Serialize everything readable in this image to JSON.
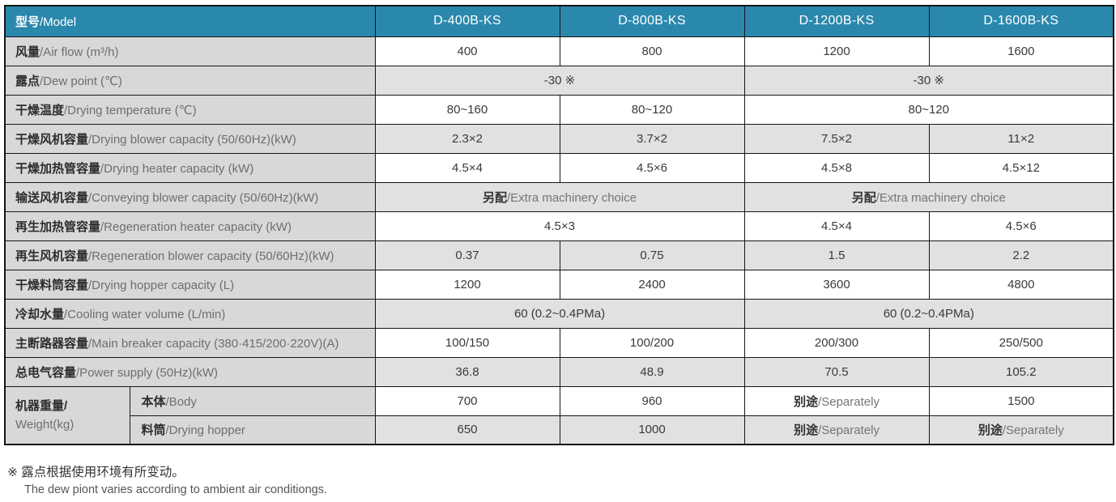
{
  "accent_color": "#2b88ad",
  "table": {
    "header": {
      "label_zh": "型号",
      "label_en": "/Model",
      "models": [
        "D-400B-KS",
        "D-800B-KS",
        "D-1200B-KS",
        "D-1600B-KS"
      ]
    },
    "rows": [
      {
        "label_zh": "风量",
        "label_en": "/Air flow (m³/h)",
        "shaded": false,
        "cells": [
          {
            "text": "400"
          },
          {
            "text": "800"
          },
          {
            "text": "1200"
          },
          {
            "text": "1600"
          }
        ]
      },
      {
        "label_zh": "露点",
        "label_en": "/Dew point (℃)",
        "shaded": true,
        "cells": [
          {
            "text": "-30 ※",
            "span": 2
          },
          {
            "text": "-30 ※",
            "span": 2
          }
        ]
      },
      {
        "label_zh": "干燥温度",
        "label_en": "/Drying temperature (℃)",
        "shaded": false,
        "cells": [
          {
            "text": "80~160"
          },
          {
            "text": "80~120"
          },
          {
            "text": "80~120",
            "span": 2
          }
        ]
      },
      {
        "label_zh": "干燥风机容量",
        "label_en": "/Drying blower capacity (50/60Hz)(kW)",
        "shaded": true,
        "cells": [
          {
            "text": "2.3×2"
          },
          {
            "text": "3.7×2"
          },
          {
            "text": "7.5×2"
          },
          {
            "text": "11×2"
          }
        ]
      },
      {
        "label_zh": "干燥加热管容量",
        "label_en": "/Drying heater capacity (kW)",
        "shaded": false,
        "cells": [
          {
            "text": "4.5×4"
          },
          {
            "text": "4.5×6"
          },
          {
            "text": "4.5×8"
          },
          {
            "text": "4.5×12"
          }
        ]
      },
      {
        "label_zh": "输送风机容量",
        "label_en": "/Conveying blower capacity (50/60Hz)(kW)",
        "shaded": true,
        "cells": [
          {
            "zh": "另配",
            "en": "/Extra machinery choice",
            "span": 2
          },
          {
            "zh": "另配",
            "en": "/Extra machinery choice",
            "span": 2
          }
        ]
      },
      {
        "label_zh": "再生加热管容量",
        "label_en": "/Regeneration heater capacity (kW)",
        "shaded": false,
        "cells": [
          {
            "text": "4.5×3",
            "span": 2
          },
          {
            "text": "4.5×4"
          },
          {
            "text": "4.5×6"
          }
        ]
      },
      {
        "label_zh": "再生风机容量",
        "label_en": "/Regeneration blower capacity (50/60Hz)(kW)",
        "shaded": true,
        "cells": [
          {
            "text": "0.37"
          },
          {
            "text": "0.75"
          },
          {
            "text": "1.5"
          },
          {
            "text": "2.2"
          }
        ]
      },
      {
        "label_zh": "干燥料筒容量",
        "label_en": "/Drying hopper capacity (L)",
        "shaded": false,
        "cells": [
          {
            "text": "1200"
          },
          {
            "text": "2400"
          },
          {
            "text": "3600"
          },
          {
            "text": "4800"
          }
        ]
      },
      {
        "label_zh": "冷却水量",
        "label_en": "/Cooling water volume (L/min)",
        "shaded": true,
        "cells": [
          {
            "text": "60 (0.2~0.4PMa)",
            "span": 2
          },
          {
            "text": "60 (0.2~0.4PMa)",
            "span": 2
          }
        ]
      },
      {
        "label_zh": "主断路器容量",
        "label_en": "/Main breaker capacity (380·415/200·220V)(A)",
        "shaded": false,
        "cells": [
          {
            "text": "100/150"
          },
          {
            "text": "100/200"
          },
          {
            "text": "200/300"
          },
          {
            "text": "250/500"
          }
        ]
      },
      {
        "label_zh": "总电气容量",
        "label_en": "/Power supply (50Hz)(kW)",
        "shaded": true,
        "cells": [
          {
            "text": "36.8"
          },
          {
            "text": "48.9"
          },
          {
            "text": "70.5"
          },
          {
            "text": "105.2"
          }
        ]
      }
    ],
    "weight_group": {
      "label_zh": "机器重量/",
      "label_en": "Weight(kg)",
      "rows": [
        {
          "sub_zh": "本体",
          "sub_en": "/Body",
          "shaded": false,
          "cells": [
            {
              "text": "700"
            },
            {
              "text": "960"
            },
            {
              "zh": "别途",
              "en": "/Separately"
            },
            {
              "text": "1500"
            }
          ]
        },
        {
          "sub_zh": "料筒",
          "sub_en": "/Drying hopper",
          "shaded": true,
          "cells": [
            {
              "text": "650"
            },
            {
              "text": "1000"
            },
            {
              "zh": "别途",
              "en": "/Separately"
            },
            {
              "zh": "别途",
              "en": "/Separately"
            }
          ]
        }
      ]
    }
  },
  "footnote": {
    "zh": "※ 露点根据使用环境有所变动。",
    "en": "The dew piont varies according to ambient air conditiongs."
  }
}
